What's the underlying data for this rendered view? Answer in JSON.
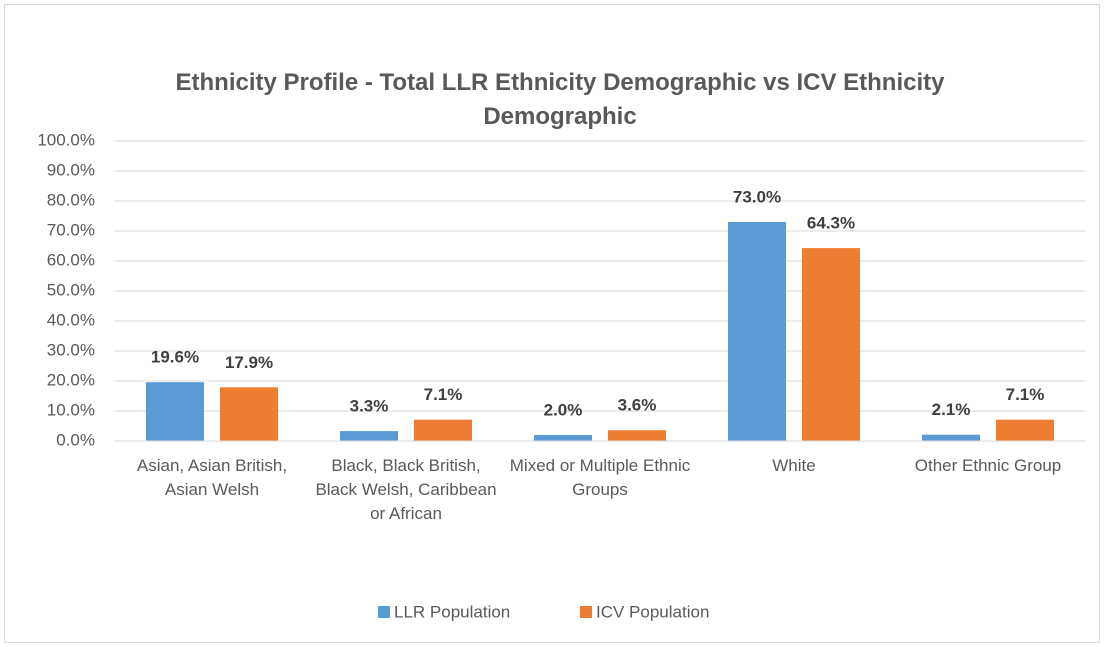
{
  "chart_data": {
    "type": "bar",
    "title": "Ethnicity Profile - Total LLR Ethnicity Demographic vs ICV Ethnicity Demographic",
    "categories": [
      "Asian, Asian British, Asian Welsh",
      "Black, Black British, Black Welsh, Caribbean or African",
      "Mixed or Multiple Ethnic Groups",
      "White",
      "Other Ethnic Group"
    ],
    "series": [
      {
        "name": "LLR Population",
        "color": "#5b9bd5",
        "values": [
          19.6,
          3.3,
          2.0,
          73.0,
          2.1
        ],
        "value_labels": [
          "19.6%",
          "3.3%",
          "2.0%",
          "73.0%",
          "2.1%"
        ]
      },
      {
        "name": "ICV Population",
        "color": "#ed7d31",
        "values": [
          17.9,
          7.1,
          3.6,
          64.3,
          7.1
        ],
        "value_labels": [
          "17.9%",
          "7.1%",
          "3.6%",
          "64.3%",
          "7.1%"
        ]
      }
    ],
    "ylim": [
      0,
      100
    ],
    "yticks": [
      {
        "value": 0,
        "label": "0.0%"
      },
      {
        "value": 10,
        "label": "10.0%"
      },
      {
        "value": 20,
        "label": "20.0%"
      },
      {
        "value": 30,
        "label": "30.0%"
      },
      {
        "value": 40,
        "label": "40.0%"
      },
      {
        "value": 50,
        "label": "50.0%"
      },
      {
        "value": 60,
        "label": "60.0%"
      },
      {
        "value": 70,
        "label": "70.0%"
      },
      {
        "value": 80,
        "label": "80.0%"
      },
      {
        "value": 90,
        "label": "90.0%"
      },
      {
        "value": 100,
        "label": "100.0%"
      }
    ],
    "grid": true,
    "legend": "bottom"
  }
}
